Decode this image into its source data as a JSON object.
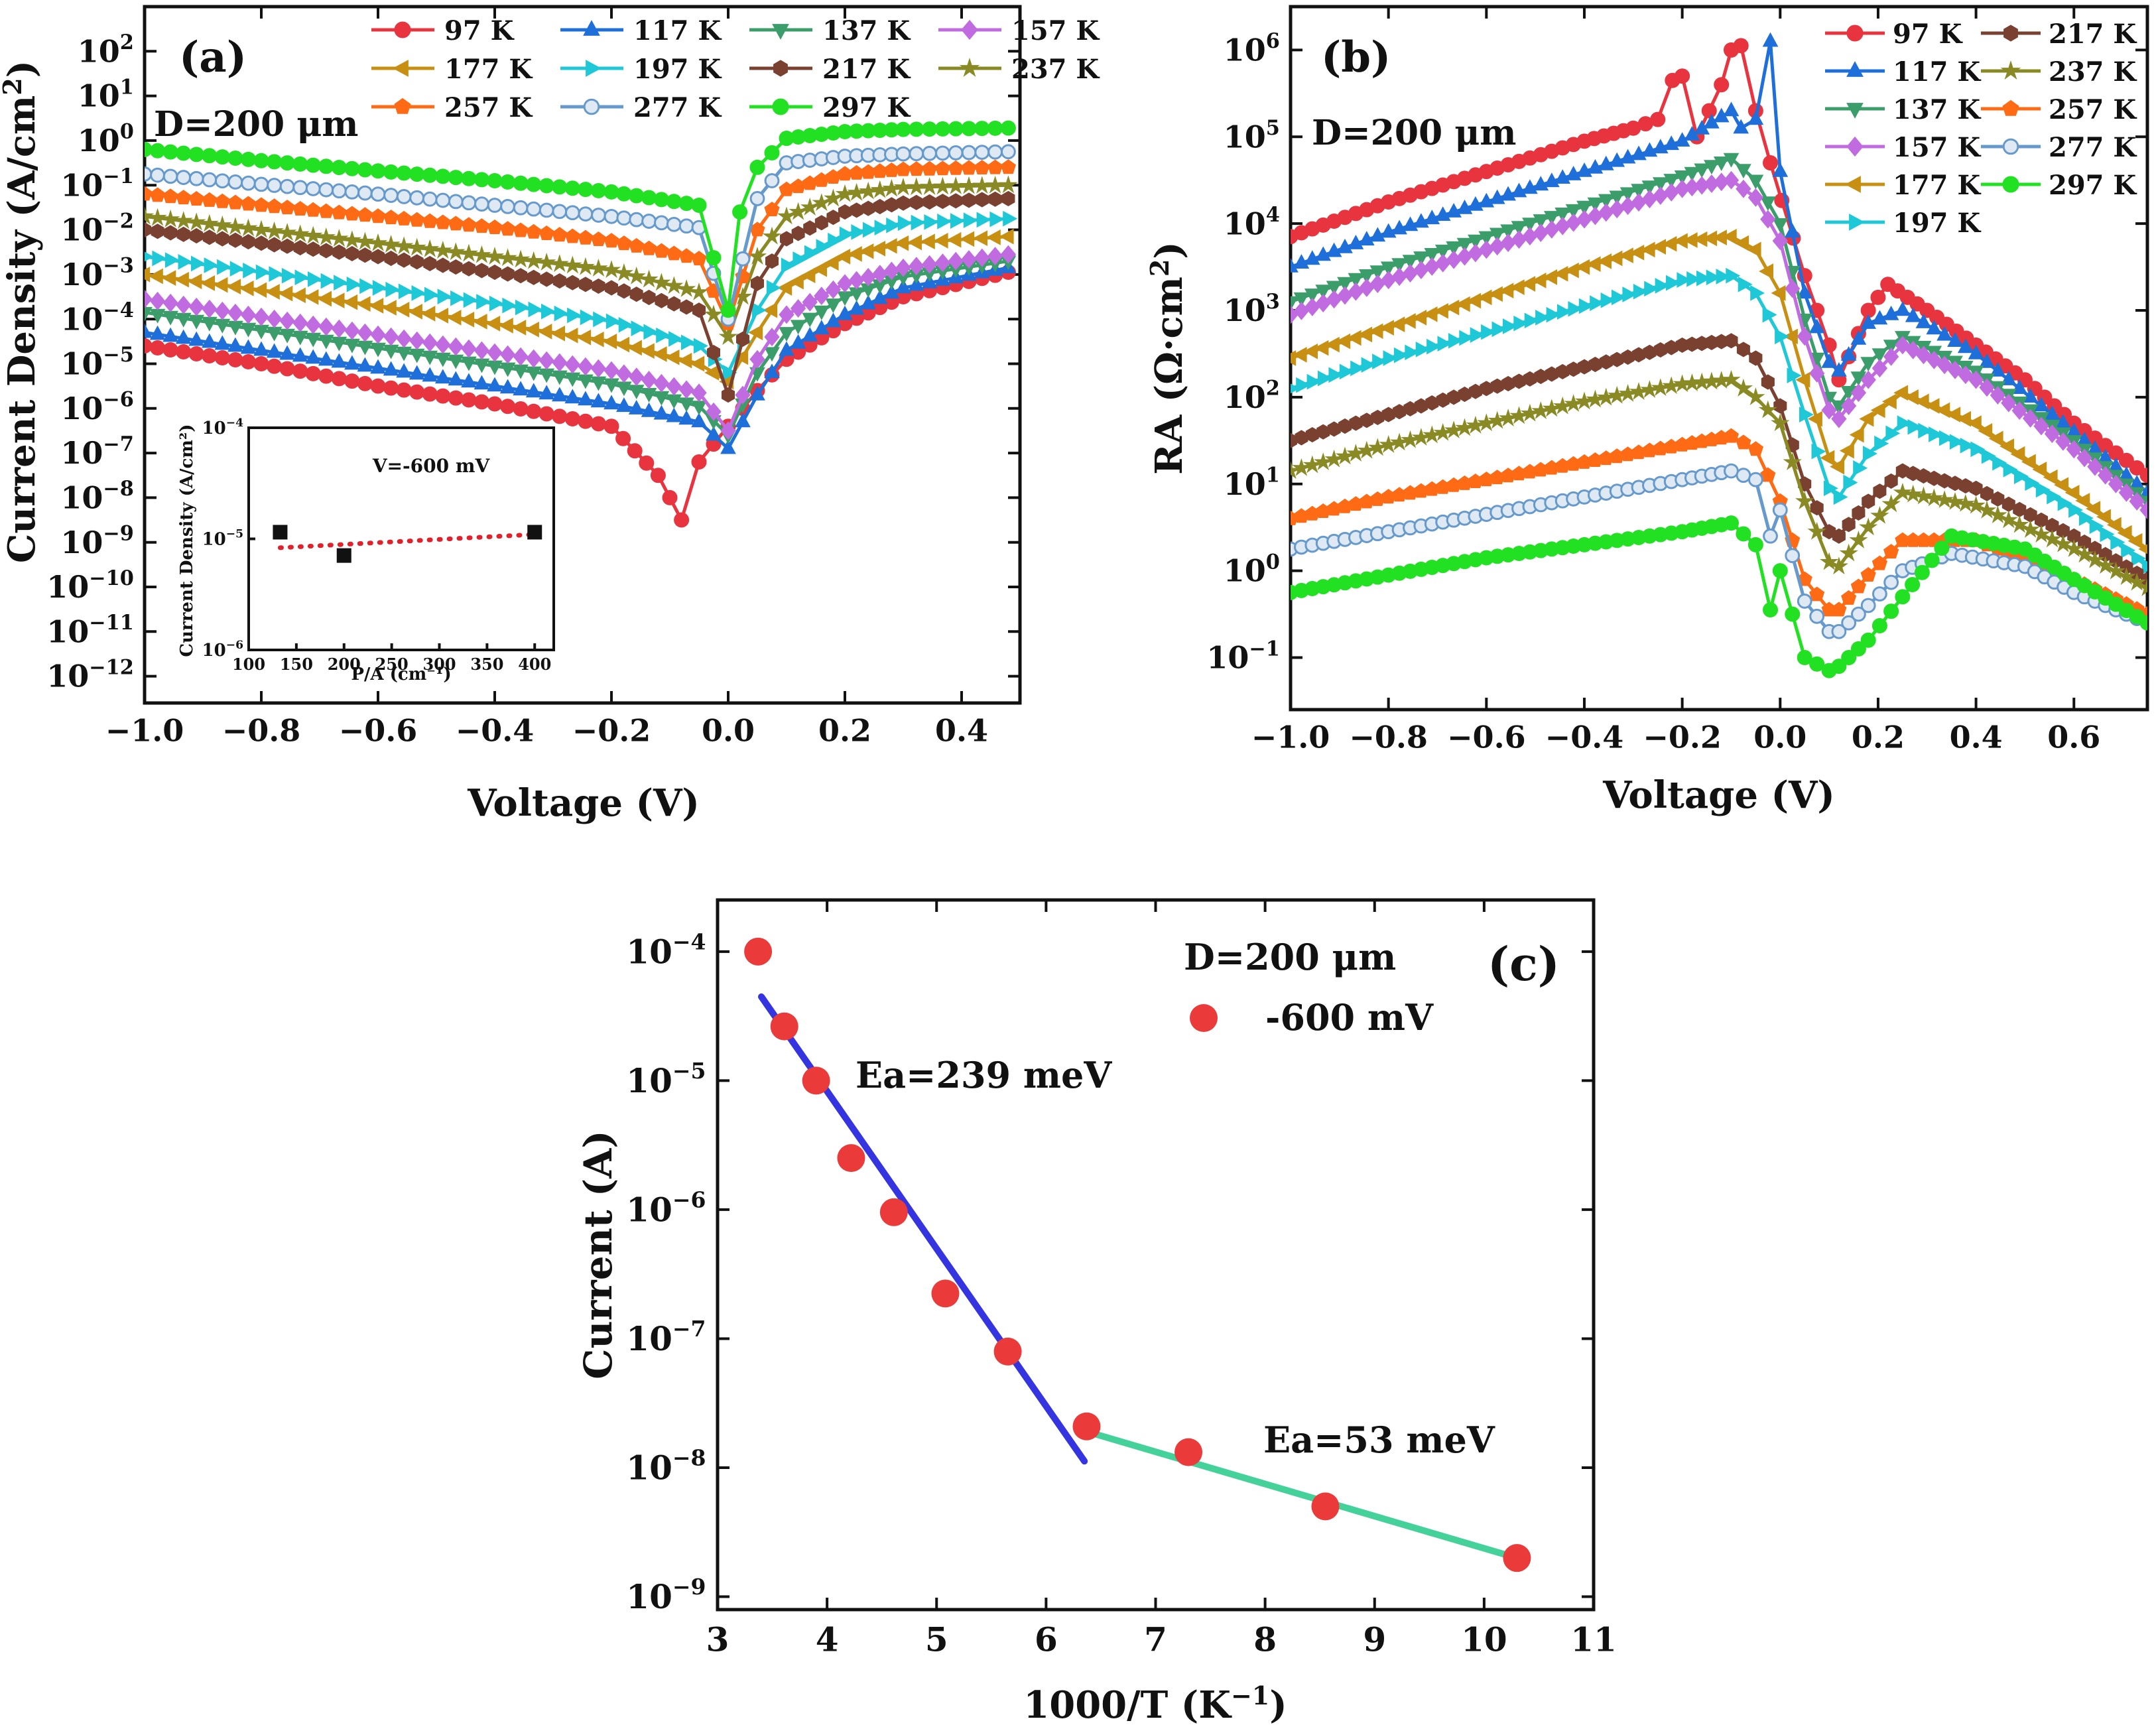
{
  "figure": {
    "colors": {
      "97 K": "#e8343f",
      "117 K": "#1e6fd9",
      "137 K": "#3a9d6a",
      "157 K": "#c06be0",
      "177 K": "#c79012",
      "197 K": "#1ec8d6",
      "217 K": "#7a4030",
      "237 K": "#8a8a24",
      "257 K": "#ff6a14",
      "277 K": "#6699cc",
      "297 K": "#22e022"
    },
    "markers": {
      "97 K": "circle",
      "117 K": "triangle-up",
      "137 K": "triangle-down",
      "157 K": "diamond",
      "177 K": "triangle-left",
      "197 K": "triangle-right",
      "217 K": "hexagon",
      "237 K": "star",
      "257 K": "pentagon",
      "277 K": "ringed-circle",
      "297 K": "circle"
    }
  },
  "chart_data": [
    {
      "id": "a",
      "type": "line",
      "panel_label": "(a)",
      "annotation": "D=200 μm",
      "xlabel": "Voltage (V)",
      "ylabel": "Current Density (A/cm²)",
      "yscale": "log",
      "xlim": [
        -1.0,
        0.5
      ],
      "ylim_exp": [
        -12.6,
        3.0
      ],
      "x_ticks": [
        "−1.0",
        "−0.8",
        "−0.6",
        "−0.4",
        "−0.2",
        "0.0",
        "0.2",
        "0.4"
      ],
      "x_tick_values": [
        -1.0,
        -0.8,
        -0.6,
        -0.4,
        -0.2,
        0.0,
        0.2,
        0.4
      ],
      "y_tick_exps": [
        2,
        1,
        0,
        -1,
        -2,
        -3,
        -4,
        -5,
        -6,
        -7,
        -8,
        -9,
        -10,
        -11,
        -12
      ],
      "legend_position": "top",
      "legend_columns": 4,
      "series": [
        {
          "name": "97 K",
          "x": [
            -1.0,
            -0.8,
            -0.6,
            -0.4,
            -0.2,
            -0.12,
            -0.08,
            -0.05,
            0.0,
            0.05,
            0.1,
            0.2,
            0.3,
            0.48
          ],
          "log10_y": [
            -4.6,
            -5.0,
            -5.5,
            -5.9,
            -6.4,
            -7.5,
            -8.5,
            -7.2,
            -6.4,
            -5.6,
            -4.9,
            -4.1,
            -3.5,
            -2.95
          ]
        },
        {
          "name": "117 K",
          "x": [
            -1.0,
            -0.8,
            -0.6,
            -0.4,
            -0.2,
            -0.05,
            0.0,
            0.05,
            0.1,
            0.2,
            0.3,
            0.48
          ],
          "log10_y": [
            -4.3,
            -4.7,
            -5.1,
            -5.5,
            -5.9,
            -6.3,
            -6.9,
            -5.7,
            -4.7,
            -3.9,
            -3.3,
            -2.85
          ]
        },
        {
          "name": "137 K",
          "x": [
            -1.0,
            -0.8,
            -0.6,
            -0.4,
            -0.2,
            -0.05,
            0.0,
            0.05,
            0.1,
            0.2,
            0.3,
            0.48
          ],
          "log10_y": [
            -3.85,
            -4.25,
            -4.65,
            -5.05,
            -5.45,
            -5.95,
            -6.6,
            -5.2,
            -4.3,
            -3.5,
            -3.05,
            -2.7
          ]
        },
        {
          "name": "157 K",
          "x": [
            -1.0,
            -0.8,
            -0.6,
            -0.4,
            -0.2,
            -0.05,
            0.0,
            0.05,
            0.1,
            0.2,
            0.3,
            0.48
          ],
          "log10_y": [
            -3.55,
            -3.95,
            -4.35,
            -4.75,
            -5.15,
            -5.65,
            -6.5,
            -4.9,
            -3.9,
            -3.2,
            -2.85,
            -2.55
          ]
        },
        {
          "name": "177 K",
          "x": [
            -1.0,
            -0.8,
            -0.6,
            -0.4,
            -0.2,
            -0.05,
            0.0,
            0.05,
            0.1,
            0.2,
            0.3,
            0.48
          ],
          "log10_y": [
            -3.0,
            -3.35,
            -3.7,
            -4.1,
            -4.5,
            -5.0,
            -5.4,
            -4.3,
            -3.3,
            -2.6,
            -2.3,
            -2.15
          ]
        },
        {
          "name": "197 K",
          "x": [
            -1.0,
            -0.8,
            -0.6,
            -0.4,
            -0.2,
            -0.05,
            0.0,
            0.05,
            0.1,
            0.2,
            0.3,
            0.48
          ],
          "log10_y": [
            -2.6,
            -2.95,
            -3.3,
            -3.65,
            -4.05,
            -4.6,
            -5.2,
            -3.8,
            -2.8,
            -2.1,
            -1.85,
            -1.75
          ]
        },
        {
          "name": "217 K",
          "x": [
            -1.0,
            -0.8,
            -0.6,
            -0.4,
            -0.2,
            -0.05,
            0.0,
            0.05,
            0.1,
            0.2,
            0.3,
            0.48
          ],
          "log10_y": [
            -2.0,
            -2.3,
            -2.6,
            -2.95,
            -3.3,
            -3.8,
            -5.7,
            -3.2,
            -2.2,
            -1.6,
            -1.4,
            -1.3
          ]
        },
        {
          "name": "237 K",
          "x": [
            -1.0,
            -0.8,
            -0.6,
            -0.4,
            -0.2,
            -0.05,
            0.0,
            0.05,
            0.1,
            0.2,
            0.3,
            0.48
          ],
          "log10_y": [
            -1.7,
            -2.0,
            -2.3,
            -2.6,
            -2.9,
            -3.4,
            -4.4,
            -2.6,
            -1.7,
            -1.2,
            -1.05,
            -1.0
          ]
        },
        {
          "name": "257 K",
          "x": [
            -1.0,
            -0.8,
            -0.6,
            -0.4,
            -0.2,
            -0.05,
            0.0,
            0.05,
            0.1,
            0.2,
            0.3,
            0.48
          ],
          "log10_y": [
            -1.2,
            -1.45,
            -1.7,
            -1.95,
            -2.25,
            -2.65,
            -4.1,
            -2.0,
            -1.1,
            -0.75,
            -0.65,
            -0.6
          ]
        },
        {
          "name": "277 K",
          "x": [
            -1.0,
            -0.8,
            -0.6,
            -0.4,
            -0.2,
            -0.05,
            0.0,
            0.05,
            0.1,
            0.2,
            0.3,
            0.48
          ],
          "log10_y": [
            -0.75,
            -0.98,
            -1.2,
            -1.45,
            -1.7,
            -1.95,
            -4.0,
            -1.3,
            -0.5,
            -0.35,
            -0.3,
            -0.25
          ]
        },
        {
          "name": "297 K",
          "x": [
            -1.0,
            -0.8,
            -0.6,
            -0.4,
            -0.2,
            -0.05,
            0.0,
            0.02,
            0.05,
            0.1,
            0.2,
            0.3,
            0.48
          ],
          "log10_y": [
            -0.2,
            -0.45,
            -0.68,
            -0.9,
            -1.15,
            -1.45,
            -3.8,
            -1.6,
            -0.6,
            0.05,
            0.2,
            0.25,
            0.28
          ]
        }
      ],
      "inset": {
        "type": "scatter",
        "annotation": "V=-600 mV",
        "xlabel": "P/A (cm⁻¹)",
        "ylabel": "Current Density (A/cm²)",
        "xlim": [
          100,
          420
        ],
        "ylim_exp": [
          -6,
          -4
        ],
        "x_ticks": [
          "100",
          "150",
          "200",
          "250",
          "300",
          "350",
          "400"
        ],
        "x_tick_values": [
          100,
          150,
          200,
          250,
          300,
          350,
          400
        ],
        "y_tick_exps": [
          -4,
          -5,
          -6
        ],
        "points": {
          "x": [
            133,
            200,
            400
          ],
          "log10_y": [
            -4.94,
            -5.15,
            -4.94
          ]
        },
        "fit": {
          "x": [
            133,
            400
          ],
          "log10_y": [
            -5.08,
            -4.96
          ]
        }
      }
    },
    {
      "id": "b",
      "type": "line",
      "panel_label": "(b)",
      "annotation": "D=200 μm",
      "xlabel": "Voltage (V)",
      "ylabel": "RA (Ω·cm²)",
      "yscale": "log",
      "xlim": [
        -1.0,
        0.75
      ],
      "ylim_exp": [
        -1.6,
        6.5
      ],
      "x_ticks": [
        "−1.0",
        "−0.8",
        "−0.6",
        "−0.4",
        "−0.2",
        "0.0",
        "0.2",
        "0.4",
        "0.6"
      ],
      "x_tick_values": [
        -1.0,
        -0.8,
        -0.6,
        -0.4,
        -0.2,
        0.0,
        0.2,
        0.4,
        0.6
      ],
      "y_tick_exps": [
        6,
        5,
        4,
        3,
        2,
        1,
        0,
        -1
      ],
      "legend_position": "top-right",
      "legend_columns": 2,
      "series": [
        {
          "name": "97 K",
          "x": [
            -1.0,
            -0.8,
            -0.6,
            -0.4,
            -0.3,
            -0.25,
            -0.22,
            -0.2,
            -0.17,
            -0.12,
            -0.1,
            -0.08,
            -0.05,
            -0.02,
            0.05,
            0.1,
            0.12,
            0.18,
            0.22,
            0.3,
            0.4,
            0.5,
            0.6,
            0.75
          ],
          "log10_y": [
            3.85,
            4.25,
            4.6,
            4.95,
            5.1,
            5.2,
            5.65,
            5.7,
            5.0,
            5.6,
            6.0,
            6.05,
            5.3,
            4.7,
            3.4,
            2.6,
            2.2,
            3.0,
            3.3,
            3.0,
            2.6,
            2.2,
            1.7,
            1.1
          ]
        },
        {
          "name": "117 K",
          "x": [
            -1.0,
            -0.8,
            -0.6,
            -0.4,
            -0.2,
            -0.1,
            -0.08,
            -0.05,
            -0.02,
            0.0,
            0.05,
            0.1,
            0.12,
            0.18,
            0.25,
            0.4,
            0.6,
            0.75
          ],
          "log10_y": [
            3.5,
            3.9,
            4.25,
            4.6,
            4.95,
            5.3,
            5.1,
            5.2,
            6.1,
            4.6,
            3.2,
            2.4,
            2.3,
            2.85,
            3.0,
            2.5,
            1.6,
            0.9
          ]
        },
        {
          "name": "137 K",
          "x": [
            -1.0,
            -0.8,
            -0.6,
            -0.4,
            -0.2,
            -0.1,
            -0.05,
            0.0,
            0.05,
            0.1,
            0.12,
            0.18,
            0.25,
            0.4,
            0.6,
            0.75
          ],
          "log10_y": [
            3.1,
            3.5,
            3.85,
            4.2,
            4.55,
            4.75,
            4.5,
            4.0,
            2.9,
            2.0,
            1.9,
            2.4,
            2.7,
            2.3,
            1.5,
            0.8
          ]
        },
        {
          "name": "157 K",
          "x": [
            -1.0,
            -0.8,
            -0.6,
            -0.4,
            -0.2,
            -0.1,
            -0.05,
            0.0,
            0.05,
            0.1,
            0.12,
            0.18,
            0.25,
            0.4,
            0.6,
            0.75
          ],
          "log10_y": [
            2.95,
            3.35,
            3.7,
            4.05,
            4.4,
            4.5,
            4.3,
            3.8,
            2.7,
            1.85,
            1.75,
            2.2,
            2.6,
            2.2,
            1.4,
            0.7
          ]
        },
        {
          "name": "177 K",
          "x": [
            -1.0,
            -0.8,
            -0.6,
            -0.4,
            -0.2,
            -0.1,
            -0.05,
            0.0,
            0.05,
            0.1,
            0.12,
            0.18,
            0.25,
            0.4,
            0.6,
            0.75
          ],
          "log10_y": [
            2.45,
            2.8,
            3.15,
            3.5,
            3.8,
            3.85,
            3.7,
            3.2,
            2.2,
            1.3,
            1.2,
            1.75,
            2.05,
            1.7,
            0.9,
            0.25
          ]
        },
        {
          "name": "197 K",
          "x": [
            -1.0,
            -0.8,
            -0.6,
            -0.4,
            -0.2,
            -0.1,
            -0.05,
            0.0,
            0.05,
            0.1,
            0.12,
            0.18,
            0.25,
            0.4,
            0.6,
            0.75
          ],
          "log10_y": [
            2.1,
            2.45,
            2.75,
            3.05,
            3.35,
            3.4,
            3.2,
            2.7,
            1.8,
            0.95,
            0.85,
            1.35,
            1.7,
            1.4,
            0.7,
            0.05
          ]
        },
        {
          "name": "217 K",
          "x": [
            -1.0,
            -0.8,
            -0.6,
            -0.4,
            -0.2,
            -0.1,
            -0.05,
            0.0,
            0.05,
            0.1,
            0.12,
            0.18,
            0.25,
            0.4,
            0.6,
            0.75
          ],
          "log10_y": [
            1.5,
            1.8,
            2.1,
            2.35,
            2.6,
            2.65,
            2.45,
            1.9,
            1.0,
            0.45,
            0.4,
            0.8,
            1.15,
            0.95,
            0.4,
            -0.1
          ]
        },
        {
          "name": "237 K",
          "x": [
            -1.0,
            -0.8,
            -0.6,
            -0.4,
            -0.2,
            -0.1,
            -0.05,
            0.0,
            0.05,
            0.1,
            0.12,
            0.18,
            0.25,
            0.4,
            0.6,
            0.75
          ],
          "log10_y": [
            1.15,
            1.45,
            1.7,
            1.95,
            2.15,
            2.2,
            2.0,
            1.7,
            0.8,
            0.1,
            0.05,
            0.5,
            0.9,
            0.75,
            0.25,
            -0.2
          ]
        },
        {
          "name": "257 K",
          "x": [
            -1.0,
            -0.8,
            -0.6,
            -0.4,
            -0.2,
            -0.1,
            -0.05,
            0.0,
            0.05,
            0.1,
            0.12,
            0.18,
            0.25,
            0.4,
            0.6,
            0.75
          ],
          "log10_y": [
            0.6,
            0.85,
            1.05,
            1.25,
            1.45,
            1.55,
            1.4,
            0.8,
            -0.1,
            -0.45,
            -0.45,
            -0.05,
            0.35,
            0.35,
            -0.1,
            -0.5
          ]
        },
        {
          "name": "277 K",
          "x": [
            -1.0,
            -0.8,
            -0.6,
            -0.4,
            -0.2,
            -0.1,
            -0.05,
            -0.02,
            0.0,
            0.05,
            0.1,
            0.12,
            0.18,
            0.25,
            0.35,
            0.5,
            0.6,
            0.75
          ],
          "log10_y": [
            0.25,
            0.45,
            0.65,
            0.85,
            1.05,
            1.15,
            1.05,
            0.4,
            0.7,
            -0.35,
            -0.7,
            -0.7,
            -0.4,
            0.0,
            0.2,
            0.05,
            -0.25,
            -0.6
          ]
        },
        {
          "name": "297 K",
          "x": [
            -1.0,
            -0.8,
            -0.6,
            -0.4,
            -0.2,
            -0.1,
            -0.05,
            -0.02,
            0.0,
            0.05,
            0.1,
            0.12,
            0.18,
            0.25,
            0.35,
            0.5,
            0.6,
            0.75
          ],
          "log10_y": [
            -0.25,
            -0.05,
            0.15,
            0.3,
            0.45,
            0.55,
            0.3,
            -0.45,
            0.0,
            -1.0,
            -1.15,
            -1.1,
            -0.8,
            -0.3,
            0.4,
            0.25,
            -0.1,
            -0.6
          ]
        }
      ]
    },
    {
      "id": "c",
      "type": "scatter",
      "panel_label": "(c)",
      "annotation": "D=200 μm",
      "legend_label": "-600 mV",
      "xlabel": "1000/T (K⁻¹)",
      "ylabel": "Current (A)",
      "yscale": "log",
      "xlim": [
        3,
        11
      ],
      "ylim_exp": [
        -9.1,
        -3.6
      ],
      "x_ticks": [
        "3",
        "4",
        "5",
        "6",
        "7",
        "8",
        "9",
        "10",
        "11"
      ],
      "x_tick_values": [
        3,
        4,
        5,
        6,
        7,
        8,
        9,
        10,
        11
      ],
      "y_tick_exps": [
        -4,
        -5,
        -6,
        -7,
        -8,
        -9
      ],
      "points": {
        "x": [
          3.37,
          3.61,
          3.9,
          4.22,
          4.61,
          5.08,
          5.65,
          6.37,
          7.3,
          8.55,
          10.3
        ],
        "log10_y": [
          -4.0,
          -4.58,
          -5.0,
          -5.6,
          -6.02,
          -6.65,
          -7.1,
          -7.68,
          -7.88,
          -8.3,
          -8.7
        ]
      },
      "fits": [
        {
          "label": "Ea=239 meV",
          "color": "#3434e0",
          "x": [
            3.4,
            6.35
          ],
          "log10_y": [
            -4.35,
            -7.95
          ]
        },
        {
          "label": "Ea=53 meV",
          "color": "#44d19a",
          "x": [
            6.37,
            10.3
          ],
          "log10_y": [
            -7.72,
            -8.7
          ]
        }
      ]
    }
  ]
}
